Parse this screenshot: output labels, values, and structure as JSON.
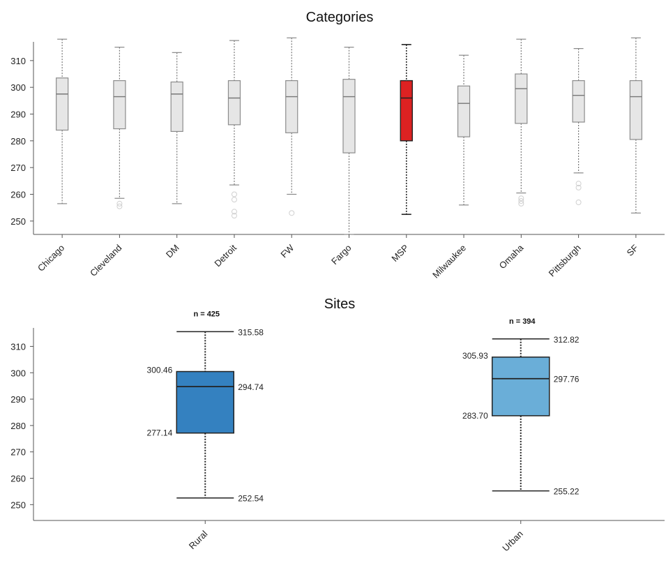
{
  "chart_data": [
    {
      "type": "boxplot",
      "title": "Categories",
      "xlabel": "",
      "ylabel": "",
      "ylim": [
        245,
        317
      ],
      "yticks": [
        250,
        260,
        270,
        280,
        290,
        300,
        310
      ],
      "categories": [
        "Chicago",
        "Cleveland",
        "DM",
        "Detroit",
        "FW",
        "Fargo",
        "MSP",
        "Milwaukee",
        "Omaha",
        "Pittsburgh",
        "SF"
      ],
      "highlight": "MSP",
      "colors": {
        "box": "#e6e6e6",
        "box_stroke": "#8c8c8c",
        "highlight_box": "#dd2222",
        "highlight_stroke": "#222222",
        "outlier": "#d0d0d0"
      },
      "boxes": [
        {
          "category": "Chicago",
          "low": 256.5,
          "q1": 284.0,
          "median": 297.5,
          "q3": 303.5,
          "high": 318.0,
          "outliers": []
        },
        {
          "category": "Cleveland",
          "low": 258.5,
          "q1": 284.5,
          "median": 296.5,
          "q3": 302.5,
          "high": 315.0,
          "outliers": [
            255.5,
            256.5
          ]
        },
        {
          "category": "DM",
          "low": 256.5,
          "q1": 283.5,
          "median": 297.5,
          "q3": 302.0,
          "high": 313.0,
          "outliers": []
        },
        {
          "category": "Detroit",
          "low": 263.5,
          "q1": 286.0,
          "median": 296.0,
          "q3": 302.5,
          "high": 317.5,
          "outliers": [
            252.0,
            253.5,
            258.0,
            260.0
          ]
        },
        {
          "category": "FW",
          "low": 260.0,
          "q1": 283.0,
          "median": 296.5,
          "q3": 302.5,
          "high": 318.5,
          "outliers": [
            253.0
          ]
        },
        {
          "category": "Fargo",
          "low": 245.0,
          "q1": 275.5,
          "median": 296.5,
          "q3": 303.0,
          "high": 315.0,
          "outliers": []
        },
        {
          "category": "MSP",
          "low": 252.5,
          "q1": 280.0,
          "median": 296.0,
          "q3": 302.5,
          "high": 316.0,
          "outliers": []
        },
        {
          "category": "Milwaukee",
          "low": 256.0,
          "q1": 281.5,
          "median": 294.0,
          "q3": 300.5,
          "high": 312.0,
          "outliers": []
        },
        {
          "category": "Omaha",
          "low": 260.5,
          "q1": 286.5,
          "median": 299.5,
          "q3": 305.0,
          "high": 318.0,
          "outliers": [
            256.5,
            257.5,
            258.5
          ]
        },
        {
          "category": "Pittsburgh",
          "low": 268.0,
          "q1": 287.0,
          "median": 297.0,
          "q3": 302.5,
          "high": 314.5,
          "outliers": [
            257.0,
            262.5,
            264.0
          ]
        },
        {
          "category": "SF",
          "low": 253.0,
          "q1": 280.5,
          "median": 296.5,
          "q3": 302.5,
          "high": 318.5,
          "outliers": []
        }
      ]
    },
    {
      "type": "boxplot",
      "title": "Sites",
      "xlabel": "",
      "ylabel": "",
      "ylim": [
        244,
        317
      ],
      "yticks": [
        250,
        260,
        270,
        280,
        290,
        300,
        310
      ],
      "categories": [
        "Rural",
        "Urban"
      ],
      "colors": {
        "stroke": "#222222"
      },
      "boxes": [
        {
          "category": "Rural",
          "count_label": "n = 425",
          "low": 252.54,
          "q1": 277.14,
          "median": 294.74,
          "q3": 300.46,
          "high": 315.58,
          "labels": {
            "low": "252.54",
            "q1": "277.14",
            "median": "294.74",
            "q3": "300.46",
            "high": "315.58"
          },
          "fill": "#3481c0"
        },
        {
          "category": "Urban",
          "count_label": "n = 394",
          "low": 255.22,
          "q1": 283.7,
          "median": 297.76,
          "q3": 305.93,
          "high": 312.82,
          "labels": {
            "low": "255.22",
            "q1": "283.70",
            "median": "297.76",
            "q3": "305.93",
            "high": "312.82"
          },
          "fill": "#6aaed8"
        }
      ]
    }
  ]
}
